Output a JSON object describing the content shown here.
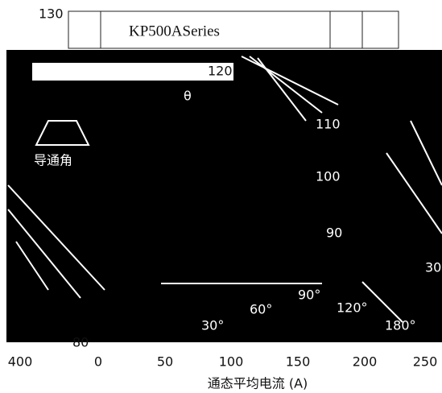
{
  "header": {
    "top_value": "130",
    "title": "KP500ASeries"
  },
  "plot": {
    "bar_value": "120",
    "theta": "θ",
    "angle_caption": "导通角",
    "temperature_labels": [
      "110",
      "100",
      "90"
    ],
    "angle_labels": [
      "30°",
      "60°",
      "90°",
      "120°",
      "180°"
    ],
    "right_edge_label": "30",
    "bottom_value": "80"
  },
  "x_axis": {
    "tick_labels": [
      "400",
      "0",
      "50",
      "100",
      "150",
      "200",
      "250"
    ],
    "label": "通态平均电流 (A)"
  }
}
